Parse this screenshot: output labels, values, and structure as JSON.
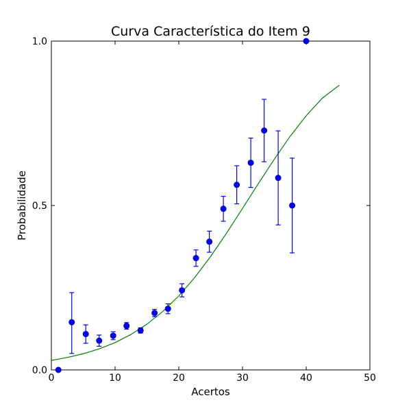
{
  "chart_data": {
    "type": "scatter",
    "title": "Curva Característica do Item 9",
    "xlabel": "Acertos",
    "ylabel": "Probabilidade",
    "xlim": [
      0,
      50
    ],
    "ylim": [
      0.0,
      1.0
    ],
    "x_ticks": [
      0,
      10,
      20,
      30,
      40,
      50
    ],
    "x_tick_labels": [
      "0",
      "10",
      "20",
      "30",
      "40",
      "50"
    ],
    "y_ticks": [
      0.0,
      0.5,
      1.0
    ],
    "y_tick_labels": [
      "0.0",
      "0.5",
      "1.0"
    ],
    "grid": false,
    "series": [
      {
        "kind": "points-with-error-bars",
        "color": "#0000ff",
        "points": [
          {
            "x": 1.1,
            "y": 0.0,
            "err_low": 0.0,
            "err_high": 0.0
          },
          {
            "x": 3.2,
            "y": 0.145,
            "err_low": 0.095,
            "err_high": 0.09
          },
          {
            "x": 5.4,
            "y": 0.109,
            "err_low": 0.028,
            "err_high": 0.028
          },
          {
            "x": 7.5,
            "y": 0.089,
            "err_low": 0.017,
            "err_high": 0.017
          },
          {
            "x": 9.7,
            "y": 0.104,
            "err_low": 0.012,
            "err_high": 0.012
          },
          {
            "x": 11.8,
            "y": 0.134,
            "err_low": 0.01,
            "err_high": 0.01
          },
          {
            "x": 14.0,
            "y": 0.12,
            "err_low": 0.008,
            "err_high": 0.008
          },
          {
            "x": 16.2,
            "y": 0.173,
            "err_low": 0.011,
            "err_high": 0.011
          },
          {
            "x": 18.3,
            "y": 0.186,
            "err_low": 0.015,
            "err_high": 0.015
          },
          {
            "x": 20.5,
            "y": 0.242,
            "err_low": 0.02,
            "err_high": 0.02
          },
          {
            "x": 22.7,
            "y": 0.34,
            "err_low": 0.025,
            "err_high": 0.025
          },
          {
            "x": 24.8,
            "y": 0.39,
            "err_low": 0.032,
            "err_high": 0.032
          },
          {
            "x": 27.0,
            "y": 0.49,
            "err_low": 0.038,
            "err_high": 0.038
          },
          {
            "x": 29.1,
            "y": 0.563,
            "err_low": 0.058,
            "err_high": 0.058
          },
          {
            "x": 31.3,
            "y": 0.63,
            "err_low": 0.075,
            "err_high": 0.075
          },
          {
            "x": 33.4,
            "y": 0.728,
            "err_low": 0.095,
            "err_high": 0.095
          },
          {
            "x": 35.6,
            "y": 0.584,
            "err_low": 0.143,
            "err_high": 0.143
          },
          {
            "x": 37.8,
            "y": 0.5,
            "err_low": 0.144,
            "err_high": 0.144
          },
          {
            "x": 40.0,
            "y": 1.0,
            "err_low": 0.0,
            "err_high": 0.0
          }
        ]
      },
      {
        "kind": "line",
        "color": "#008000",
        "x": [
          0,
          2.5,
          5,
          7.5,
          10,
          12.5,
          15,
          17.5,
          20,
          22.5,
          25,
          27.5,
          30,
          32.5,
          35,
          37.5,
          40,
          42.5,
          45.2
        ],
        "y": [
          0.029,
          0.038,
          0.049,
          0.064,
          0.083,
          0.108,
          0.139,
          0.178,
          0.225,
          0.281,
          0.345,
          0.416,
          0.491,
          0.567,
          0.641,
          0.711,
          0.773,
          0.826,
          0.866
        ]
      }
    ]
  }
}
